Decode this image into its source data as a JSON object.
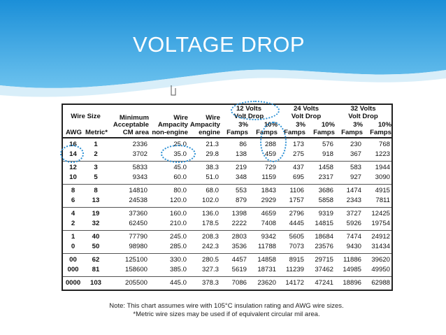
{
  "title": "VOLTAGE DROP",
  "table": {
    "wire_size": "Wire Size",
    "columns": [
      [
        "AWG"
      ],
      [
        "Metric*"
      ],
      [
        "Minimum",
        "Acceptable",
        "CM area"
      ],
      [
        "Wire",
        "Ampacity",
        "non-engine"
      ],
      [
        "Wire",
        "Ampacity",
        "engine"
      ]
    ],
    "groups": [
      {
        "label": [
          "12 Volts",
          "Volt Drop"
        ],
        "columns": [
          [
            "3%",
            "Famps"
          ],
          [
            "10%",
            "Famps"
          ]
        ]
      },
      {
        "label": [
          "24 Volts",
          "Volt Drop"
        ],
        "columns": [
          [
            "3%",
            "Famps"
          ],
          [
            "10%",
            "Famps"
          ]
        ]
      },
      {
        "label": [
          "32 Volts",
          "Volt Drop"
        ],
        "columns": [
          [
            "3%",
            "Famps"
          ],
          [
            "10%",
            "Famps"
          ]
        ]
      }
    ],
    "rows": [
      [
        "16",
        "1",
        "2336",
        "25.0",
        "21.3",
        "86",
        "288",
        "173",
        "576",
        "230",
        "768"
      ],
      [
        "14",
        "2",
        "3702",
        "35.0",
        "29.8",
        "138",
        "459",
        "275",
        "918",
        "367",
        "1223"
      ],
      [
        "12",
        "3",
        "5833",
        "45.0",
        "38.3",
        "219",
        "729",
        "437",
        "1458",
        "583",
        "1944"
      ],
      [
        "10",
        "5",
        "9343",
        "60.0",
        "51.0",
        "348",
        "1159",
        "695",
        "2317",
        "927",
        "3090"
      ],
      [
        "8",
        "8",
        "14810",
        "80.0",
        "68.0",
        "553",
        "1843",
        "1106",
        "3686",
        "1474",
        "4915"
      ],
      [
        "6",
        "13",
        "24538",
        "120.0",
        "102.0",
        "879",
        "2929",
        "1757",
        "5858",
        "2343",
        "7811"
      ],
      [
        "4",
        "19",
        "37360",
        "160.0",
        "136.0",
        "1398",
        "4659",
        "2796",
        "9319",
        "3727",
        "12425"
      ],
      [
        "2",
        "32",
        "62450",
        "210.0",
        "178.5",
        "2222",
        "7408",
        "4445",
        "14815",
        "5926",
        "19754"
      ],
      [
        "1",
        "40",
        "77790",
        "245.0",
        "208.3",
        "2803",
        "9342",
        "5605",
        "18684",
        "7474",
        "24912"
      ],
      [
        "0",
        "50",
        "98980",
        "285.0",
        "242.3",
        "3536",
        "11788",
        "7073",
        "23576",
        "9430",
        "31434"
      ],
      [
        "00",
        "62",
        "125100",
        "330.0",
        "280.5",
        "4457",
        "14858",
        "8915",
        "29715",
        "11886",
        "39620"
      ],
      [
        "000",
        "81",
        "158600",
        "385.0",
        "327.3",
        "5619",
        "18731",
        "11239",
        "37462",
        "14985",
        "49950"
      ],
      [
        "0000",
        "103",
        "205500",
        "445.0",
        "378.3",
        "7086",
        "23620",
        "14172",
        "47241",
        "18896",
        "62988"
      ]
    ],
    "notes": [
      "Note: This chart assumes wire with 105°C insulation rating and AWG wire sizes.",
      "*Metric wire sizes may be used if of equivalent circular mil area."
    ]
  }
}
